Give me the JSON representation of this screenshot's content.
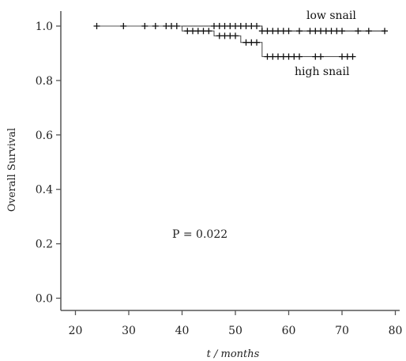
{
  "chart_data": {
    "type": "line",
    "title": "",
    "xlabel": "t / months",
    "ylabel": "Overall Survival",
    "xlim": [
      15,
      80
    ],
    "ylim": [
      -0.03,
      1.05
    ],
    "x_ticks": [
      "20",
      "30",
      "40",
      "50",
      "60",
      "70",
      "80"
    ],
    "y_ticks": [
      "0.0",
      "0.2",
      "0.4",
      "0.6",
      "0.8",
      "1.0"
    ],
    "grid": false,
    "legend": "none",
    "annotation": "P = 0.022",
    "series": [
      {
        "name": "low snail",
        "color": "#333333",
        "steps": [
          [
            24,
            1.0
          ],
          [
            55,
            1.0
          ],
          [
            55,
            0.982
          ],
          [
            78,
            0.982
          ]
        ],
        "censored": [
          [
            24,
            1.0
          ],
          [
            29,
            1.0
          ],
          [
            33,
            1.0
          ],
          [
            35,
            1.0
          ],
          [
            37,
            1.0
          ],
          [
            38,
            1.0
          ],
          [
            39,
            1.0
          ],
          [
            46,
            1.0
          ],
          [
            47,
            1.0
          ],
          [
            48,
            1.0
          ],
          [
            49,
            1.0
          ],
          [
            50,
            1.0
          ],
          [
            51,
            1.0
          ],
          [
            52,
            1.0
          ],
          [
            53,
            1.0
          ],
          [
            54,
            1.0
          ],
          [
            55,
            0.982
          ],
          [
            56,
            0.982
          ],
          [
            57,
            0.982
          ],
          [
            58,
            0.982
          ],
          [
            59,
            0.982
          ],
          [
            60,
            0.982
          ],
          [
            62,
            0.982
          ],
          [
            64,
            0.982
          ],
          [
            65,
            0.982
          ],
          [
            66,
            0.982
          ],
          [
            67,
            0.982
          ],
          [
            68,
            0.982
          ],
          [
            69,
            0.982
          ],
          [
            70,
            0.982
          ],
          [
            73,
            0.982
          ],
          [
            75,
            0.982
          ],
          [
            78,
            0.982
          ]
        ]
      },
      {
        "name": "high snail",
        "color": "#555555",
        "steps": [
          [
            24,
            1.0
          ],
          [
            40,
            1.0
          ],
          [
            40,
            0.982
          ],
          [
            46,
            0.982
          ],
          [
            46,
            0.964
          ],
          [
            51,
            0.964
          ],
          [
            51,
            0.94
          ],
          [
            55,
            0.94
          ],
          [
            55,
            0.888
          ],
          [
            72,
            0.888
          ]
        ],
        "censored": [
          [
            41,
            0.982
          ],
          [
            42,
            0.982
          ],
          [
            43,
            0.982
          ],
          [
            44,
            0.982
          ],
          [
            45,
            0.982
          ],
          [
            47,
            0.964
          ],
          [
            48,
            0.964
          ],
          [
            49,
            0.964
          ],
          [
            50,
            0.964
          ],
          [
            52,
            0.94
          ],
          [
            53,
            0.94
          ],
          [
            54,
            0.94
          ],
          [
            56,
            0.888
          ],
          [
            57,
            0.888
          ],
          [
            58,
            0.888
          ],
          [
            59,
            0.888
          ],
          [
            60,
            0.888
          ],
          [
            61,
            0.888
          ],
          [
            62,
            0.888
          ],
          [
            65,
            0.888
          ],
          [
            66,
            0.888
          ],
          [
            70,
            0.888
          ],
          [
            71,
            0.888
          ],
          [
            72,
            0.888
          ]
        ]
      }
    ]
  }
}
